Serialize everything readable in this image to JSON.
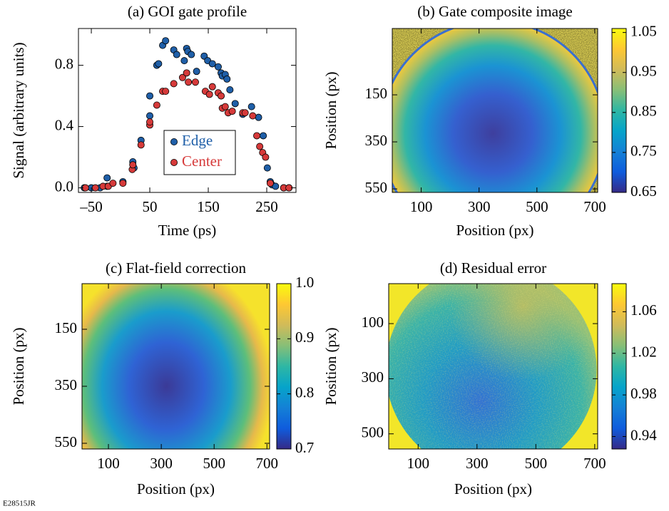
{
  "chart_data": [
    {
      "type": "scatter",
      "title": "(a) GOI gate profile",
      "x_label": "Time (ps)",
      "y_label": "Signal (arbitrary units)",
      "xlim": [
        -72,
        300
      ],
      "ylim": [
        -0.03,
        1.04
      ],
      "xticks": [
        {
          "value": -50,
          "label": "–50"
        },
        50,
        150,
        250
      ],
      "yticks": [
        {
          "value": 0,
          "label": "0.0"
        },
        0.4,
        0.8
      ],
      "legend": "inside",
      "series": [
        {
          "name": "Edge",
          "color": "#1f5fa8",
          "x": [
            -62,
            -50,
            -35,
            -23,
            -23,
            4,
            21,
            23,
            35,
            50,
            50,
            62,
            65,
            72,
            77,
            91,
            96,
            109,
            113,
            115,
            121,
            130,
            143,
            149,
            157,
            167,
            172,
            174,
            179,
            182,
            187,
            196,
            209,
            224,
            236,
            244,
            251,
            256,
            259,
            265,
            279,
            288
          ],
          "values": [
            0,
            0,
            0,
            0.065,
            0.01,
            0.04,
            0.17,
            0.13,
            0.31,
            0.47,
            0.6,
            0.8,
            0.81,
            0.93,
            0.96,
            0.9,
            0.87,
            0.83,
            0.91,
            0.89,
            0.87,
            0.76,
            0.86,
            0.83,
            0.81,
            0.79,
            0.75,
            0.73,
            0.74,
            0.71,
            0.64,
            0.55,
            0.48,
            0.53,
            0.46,
            0.34,
            0.13,
            0.04,
            0.02,
            0.01,
            0,
            0
          ]
        },
        {
          "name": "Center",
          "color": "#d63a3a",
          "x": [
            -60,
            -43,
            -30,
            -21,
            -13,
            4,
            20,
            21,
            35,
            50,
            50,
            62,
            72,
            77,
            91,
            106,
            113,
            116,
            128,
            145,
            152,
            157,
            167,
            172,
            174,
            179,
            184,
            191,
            209,
            213,
            226,
            233,
            238,
            243,
            248,
            256,
            279,
            288
          ],
          "values": [
            0,
            0,
            0.01,
            0.01,
            0.03,
            0.03,
            0.12,
            0.15,
            0.28,
            0.41,
            0.43,
            0.54,
            0.63,
            0.63,
            0.68,
            0.72,
            0.75,
            0.69,
            0.69,
            0.63,
            0.61,
            0.66,
            0.62,
            0.6,
            0.52,
            0.53,
            0.49,
            0.5,
            0.49,
            0.49,
            0.47,
            0.34,
            0.27,
            0.23,
            0.2,
            0.03,
            0,
            0
          ]
        }
      ]
    },
    {
      "type": "image",
      "title": "(b) Gate composite image",
      "x_label": "Position (px)",
      "y_label": "Position (px)",
      "xlim": [
        0,
        710
      ],
      "ylim": [
        -132,
        565
      ],
      "y_inverted": true,
      "xticks": [
        100,
        300,
        500,
        700
      ],
      "yticks": [
        150,
        350,
        550
      ],
      "colorbar": {
        "clim": [
          0.65,
          1.06
        ],
        "ticks": [
          0.65,
          0.75,
          0.85,
          0.95,
          1.05
        ],
        "colormap": [
          "#352a87",
          "#0f5cdd",
          "#1481d6",
          "#06a4ca",
          "#2eb7a4",
          "#87bf77",
          "#d1bb59",
          "#fec832",
          "#f9fb0e"
        ]
      }
    },
    {
      "type": "image",
      "title": "(c) Flat-field correction",
      "x_label": "Position (px)",
      "y_label": "Position (px)",
      "xlim": [
        0,
        710
      ],
      "ylim": [
        -10,
        570
      ],
      "y_inverted": true,
      "xticks": [
        100,
        300,
        500,
        700
      ],
      "yticks": [
        150,
        350,
        550
      ],
      "colorbar": {
        "clim": [
          0.7,
          1.0
        ],
        "ticks": [
          0.7,
          0.8,
          0.9,
          {
            "value": 1.0,
            "label": "1.0"
          }
        ],
        "colormap": [
          "#352a87",
          "#0f5cdd",
          "#1481d6",
          "#06a4ca",
          "#2eb7a4",
          "#87bf77",
          "#d1bb59",
          "#fec832",
          "#f9fb0e"
        ]
      }
    },
    {
      "type": "image",
      "title": "(d) Residual error",
      "x_label": "Position (px)",
      "y_label": "Position (px)",
      "xlim": [
        0,
        710
      ],
      "ylim": [
        -45,
        555
      ],
      "y_inverted": true,
      "xticks": [
        100,
        300,
        500,
        700
      ],
      "yticks": [
        100,
        300,
        500
      ],
      "colorbar": {
        "clim": [
          0.928,
          1.087
        ],
        "ticks": [
          0.94,
          0.98,
          1.02,
          1.06
        ],
        "colormap": [
          "#352a87",
          "#0f5cdd",
          "#1481d6",
          "#06a4ca",
          "#2eb7a4",
          "#87bf77",
          "#d1bb59",
          "#fec832",
          "#f9fb0e"
        ]
      }
    }
  ],
  "footer": "E28515JR"
}
